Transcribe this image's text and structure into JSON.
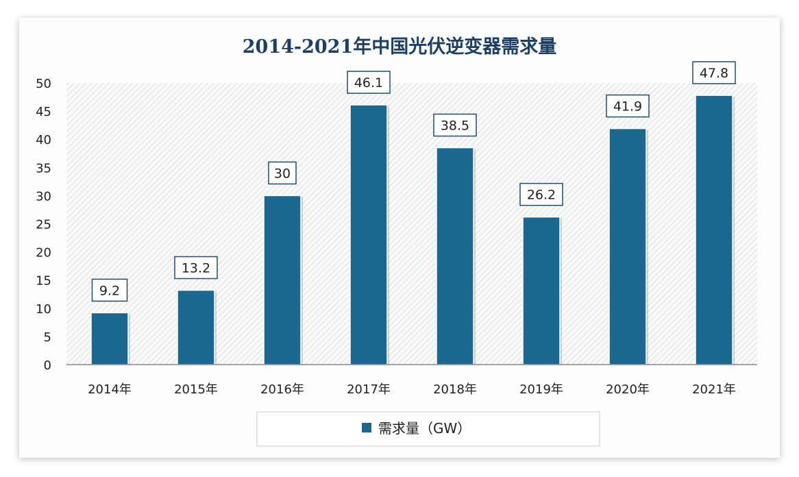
{
  "chart_data": {
    "type": "bar",
    "title": "2014-2021年中国光伏逆变器需求量",
    "categories": [
      "2014年",
      "2015年",
      "2016年",
      "2017年",
      "2018年",
      "2019年",
      "2020年",
      "2021年"
    ],
    "series": [
      {
        "name": "需求量（GW）",
        "values": [
          9.2,
          13.2,
          30,
          46.1,
          38.5,
          26.2,
          41.9,
          47.8
        ]
      }
    ],
    "data_labels": [
      "9.2",
      "13.2",
      "30",
      "46.1",
      "38.5",
      "26.2",
      "41.9",
      "47.8"
    ],
    "yticks": [
      "0",
      "5",
      "10",
      "15",
      "20",
      "25",
      "30",
      "35",
      "40",
      "45",
      "50"
    ],
    "ylim": [
      0,
      50
    ],
    "xlabel": "",
    "ylabel": "",
    "grid": false,
    "legend": "bottom",
    "colors": {
      "bar": "#1a6890",
      "title": "#1b3f66"
    }
  }
}
